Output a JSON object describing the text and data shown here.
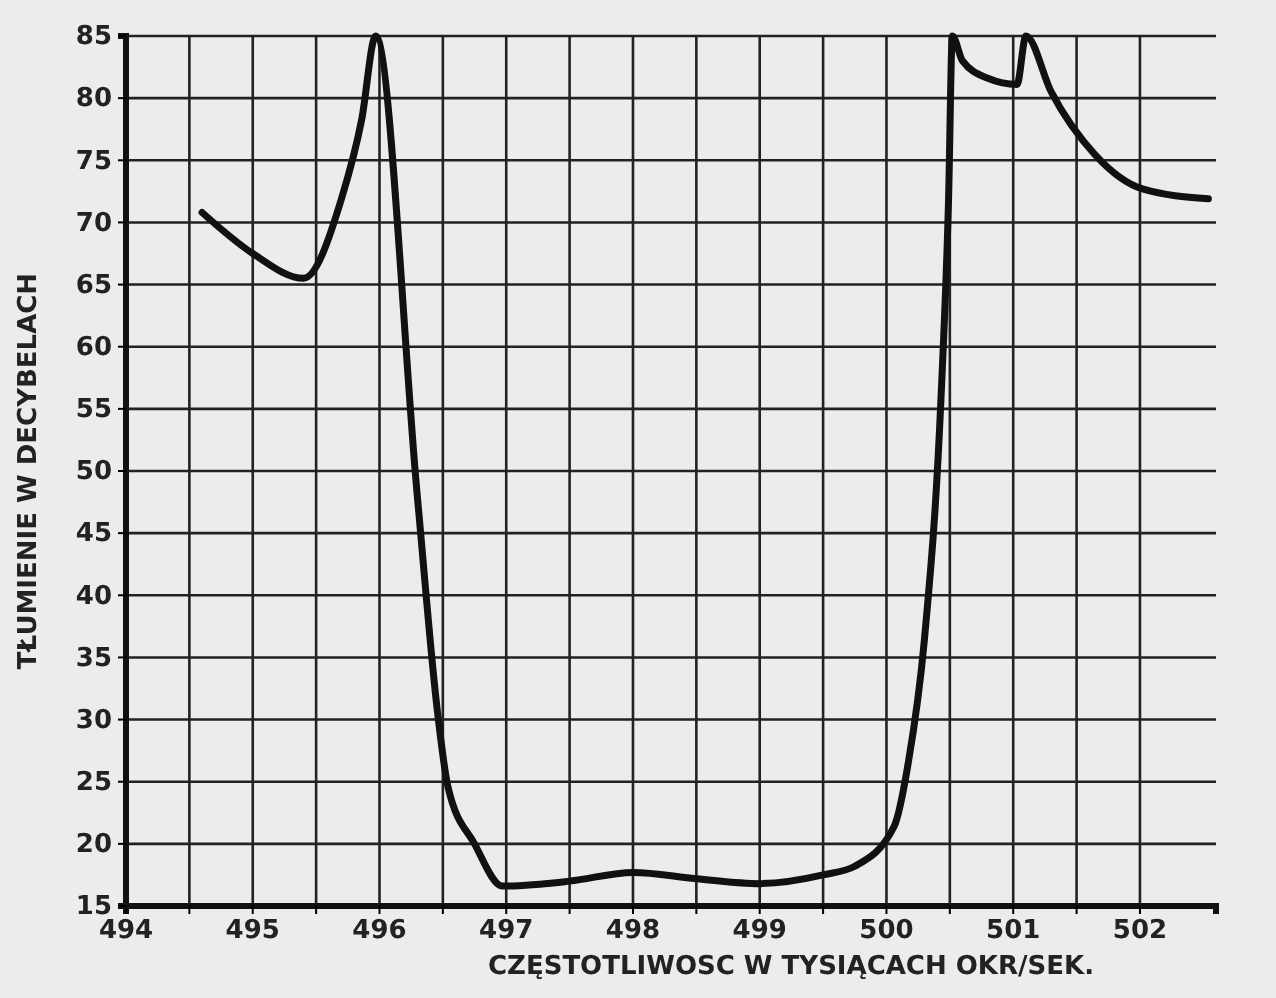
{
  "chart_data": {
    "type": "line",
    "xlabel": "CZĘSTOTLIWOSC  W TYSIĄCACH OKR/SEK.",
    "ylabel": "TŁUMIENIE  W DECYBELACH",
    "x": [
      494.6,
      495.0,
      495.4,
      495.7,
      495.86,
      495.97,
      496.3,
      496.46,
      496.54,
      496.75,
      496.97,
      497.5,
      498.0,
      498.5,
      499.0,
      499.5,
      499.75,
      500.06,
      500.17,
      500.3,
      500.43,
      500.49,
      500.52,
      500.6,
      500.8,
      501.03,
      501.1,
      501.3,
      501.65,
      502.02,
      502.54
    ],
    "series": [
      {
        "color": "#111111",
        "values": [
          70.8,
          67.5,
          65.5,
          71.9,
          78.3,
          85,
          47.8,
          30.4,
          24.6,
          20,
          16.6,
          17,
          17.7,
          17.2,
          16.8,
          17.5,
          18.2,
          21.4,
          26.4,
          36.5,
          55.8,
          71.9,
          85,
          83,
          81.6,
          81.1,
          85,
          80.5,
          75.4,
          72.7,
          71.9
        ]
      }
    ],
    "xlim": [
      494,
      502.6
    ],
    "ylim": [
      15,
      85
    ],
    "xticks": [
      494,
      {
        "value": 494.5,
        "label": null
      },
      495,
      {
        "value": 495.5,
        "label": null
      },
      496,
      {
        "value": 496.5,
        "label": null
      },
      497,
      {
        "value": 497.5,
        "label": null
      },
      498,
      {
        "value": 498.5,
        "label": null
      },
      499,
      {
        "value": 499.5,
        "label": null
      },
      500,
      {
        "value": 500.5,
        "label": null
      },
      501,
      {
        "value": 501.5,
        "label": null
      },
      502
    ],
    "yticks": [
      15,
      20,
      25,
      30,
      35,
      40,
      45,
      50,
      55,
      60,
      65,
      70,
      75,
      80,
      85
    ],
    "grid": true,
    "line_style": "solid",
    "marker": "none"
  }
}
